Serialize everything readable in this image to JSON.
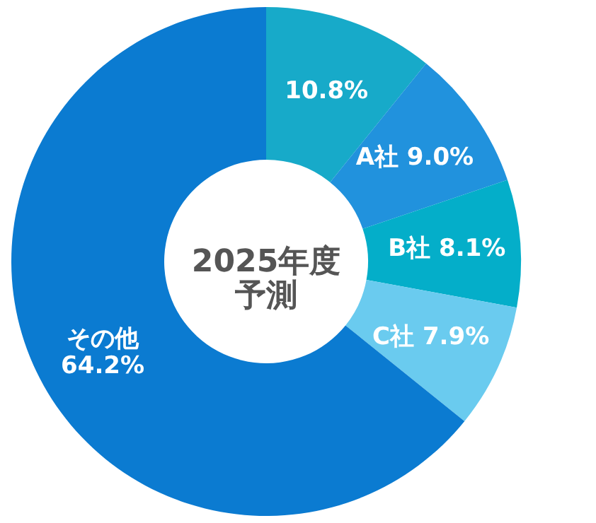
{
  "chart_data": {
    "type": "donut",
    "title": "2025年度",
    "subtitle": "予測",
    "categories": [
      null,
      "A社",
      "B社",
      "C社",
      "その他"
    ],
    "values": [
      10.8,
      9.0,
      8.1,
      7.9,
      64.2
    ],
    "colors": [
      "#17aac9",
      "#2192dd",
      "#04aec9",
      "#6acbef",
      "#0b7bd1"
    ],
    "value_labels": [
      "10.8%",
      "9.0%",
      "8.1%",
      "7.9%",
      "64.2%"
    ]
  }
}
